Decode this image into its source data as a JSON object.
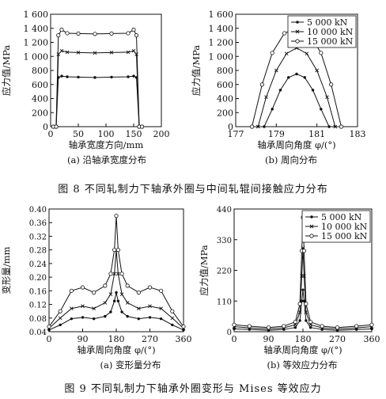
{
  "figure8": {
    "caption": "图 8   不同轧制力下轴承外圈与中间轧辊间接触应力分布",
    "a": {
      "subcaption": "(a) 沿轴承宽度分布",
      "xlabel": "轴承宽度方向/mm",
      "ylabel": "应力值/MPa",
      "yticks": [
        "0",
        "200",
        "400",
        "600",
        "800",
        "1 000",
        "1 200",
        "1 400",
        "1 600"
      ],
      "xticks": [
        "0",
        "50",
        "100",
        "150",
        "200"
      ]
    },
    "b": {
      "subcaption": "(b) 周向分布",
      "xlabel": "轴承周向角度 φ/(°)",
      "ylabel": "应力值/MPa",
      "yticks": [
        "0",
        "200",
        "400",
        "600",
        "800",
        "1 000",
        "1 200",
        "1 400",
        "1 600"
      ],
      "xticks": [
        "177",
        "179",
        "181",
        "183"
      ],
      "legend": [
        "5 000 kN",
        "10 000 kN",
        "15 000 kN"
      ]
    }
  },
  "figure9": {
    "caption": "图 9   不同轧制力下轴承外圈变形与 Mises 等效应力",
    "a": {
      "subcaption": "(a) 变形量分布",
      "xlabel": "轴承周向角度 φ/(°)",
      "ylabel": "变形量/mm",
      "yticks": [
        "0.04",
        "0.08",
        "0.12",
        "0.16",
        "0.20",
        "0.24",
        "0.28",
        "0.32",
        "0.36",
        "0.40"
      ],
      "xticks": [
        "0",
        "90",
        "180",
        "270",
        "360"
      ]
    },
    "b": {
      "subcaption": "(b) 等效应力分布",
      "xlabel": "轴承周向角度 φ/(°)",
      "ylabel": "应力值/MPa",
      "yticks": [
        "0",
        "110",
        "220",
        "330",
        "440"
      ],
      "xticks": [
        "0",
        "90",
        "180",
        "270",
        "360"
      ],
      "legend": [
        "5 000 kN",
        "10 000 kN",
        "15 000 kN"
      ]
    }
  },
  "chart_data": [
    {
      "type": "line",
      "id": "fig8a",
      "xlim": [
        0,
        200
      ],
      "ylim": [
        0,
        1600
      ],
      "series": [
        {
          "name": "5 000 kN",
          "x": [
            5,
            10,
            14,
            20,
            30,
            50,
            80,
            110,
            140,
            150,
            155,
            160,
            165
          ],
          "y": [
            0,
            0,
            700,
            720,
            710,
            705,
            700,
            705,
            710,
            720,
            700,
            0,
            0
          ]
        },
        {
          "name": "10 000 kN",
          "x": [
            5,
            10,
            14,
            20,
            30,
            50,
            80,
            110,
            140,
            150,
            155,
            160,
            165
          ],
          "y": [
            0,
            0,
            1030,
            1080,
            1060,
            1055,
            1050,
            1055,
            1060,
            1080,
            1030,
            0,
            0
          ]
        },
        {
          "name": "15 000 kN",
          "x": [
            5,
            10,
            14,
            20,
            30,
            50,
            80,
            110,
            140,
            150,
            155,
            160,
            165
          ],
          "y": [
            0,
            0,
            1300,
            1380,
            1330,
            1325,
            1320,
            1325,
            1330,
            1380,
            1300,
            0,
            0
          ]
        }
      ]
    },
    {
      "type": "line",
      "id": "fig8b",
      "xlim": [
        177,
        183
      ],
      "ylim": [
        0,
        1600
      ],
      "series": [
        {
          "name": "5 000 kN",
          "x": [
            178.4,
            178.8,
            179.2,
            179.6,
            180,
            180.4,
            180.8,
            181.2,
            181.6
          ],
          "y": [
            0,
            250,
            520,
            700,
            750,
            700,
            520,
            250,
            0
          ]
        },
        {
          "name": "10 000 kN",
          "x": [
            178.1,
            178.5,
            179,
            179.5,
            180,
            180.5,
            181,
            181.5,
            181.9
          ],
          "y": [
            0,
            420,
            800,
            1040,
            1120,
            1040,
            800,
            420,
            0
          ]
        },
        {
          "name": "15 000 kN",
          "x": [
            177.8,
            178.3,
            178.8,
            179.4,
            180,
            180.6,
            181.2,
            181.7,
            182.2
          ],
          "y": [
            0,
            600,
            1050,
            1330,
            1400,
            1330,
            1050,
            600,
            0
          ]
        }
      ]
    },
    {
      "type": "line",
      "id": "fig9a",
      "xlim": [
        0,
        360
      ],
      "ylim": [
        0.04,
        0.4
      ],
      "series": [
        {
          "name": "5 000 kN",
          "x": [
            0,
            30,
            60,
            90,
            120,
            150,
            165,
            175,
            180,
            185,
            195,
            210,
            240,
            270,
            300,
            330,
            360
          ],
          "y": [
            0.045,
            0.06,
            0.078,
            0.082,
            0.078,
            0.085,
            0.098,
            0.13,
            0.155,
            0.13,
            0.098,
            0.085,
            0.078,
            0.082,
            0.078,
            0.06,
            0.045
          ]
        },
        {
          "name": "10 000 kN",
          "x": [
            0,
            30,
            60,
            90,
            120,
            150,
            165,
            175,
            180,
            185,
            195,
            210,
            240,
            270,
            300,
            330,
            360
          ],
          "y": [
            0.05,
            0.08,
            0.108,
            0.115,
            0.108,
            0.125,
            0.15,
            0.21,
            0.28,
            0.21,
            0.15,
            0.125,
            0.108,
            0.115,
            0.108,
            0.08,
            0.05
          ]
        },
        {
          "name": "15 000 kN",
          "x": [
            0,
            30,
            60,
            90,
            120,
            150,
            165,
            175,
            180,
            185,
            195,
            210,
            240,
            270,
            300,
            330,
            360
          ],
          "y": [
            0.055,
            0.1,
            0.16,
            0.17,
            0.155,
            0.175,
            0.21,
            0.28,
            0.38,
            0.28,
            0.21,
            0.175,
            0.155,
            0.17,
            0.16,
            0.1,
            0.055
          ]
        }
      ]
    },
    {
      "type": "line",
      "id": "fig9b",
      "xlim": [
        0,
        360
      ],
      "ylim": [
        0,
        440
      ],
      "series": [
        {
          "name": "5 000 kN",
          "x": [
            0,
            40,
            90,
            130,
            160,
            172,
            177,
            180,
            183,
            188,
            200,
            230,
            270,
            320,
            360
          ],
          "y": [
            10,
            8,
            5,
            8,
            15,
            40,
            110,
            150,
            110,
            40,
            15,
            8,
            5,
            8,
            10
          ]
        },
        {
          "name": "10 000 kN",
          "x": [
            0,
            40,
            90,
            130,
            160,
            172,
            177,
            180,
            183,
            188,
            200,
            230,
            270,
            320,
            360
          ],
          "y": [
            18,
            14,
            10,
            14,
            25,
            70,
            200,
            300,
            200,
            70,
            25,
            14,
            10,
            14,
            18
          ]
        },
        {
          "name": "15 000 kN",
          "x": [
            0,
            40,
            90,
            130,
            160,
            172,
            177,
            180,
            183,
            188,
            200,
            230,
            270,
            320,
            360
          ],
          "y": [
            25,
            20,
            15,
            20,
            35,
            100,
            290,
            410,
            290,
            100,
            35,
            20,
            15,
            20,
            25
          ]
        }
      ]
    }
  ]
}
